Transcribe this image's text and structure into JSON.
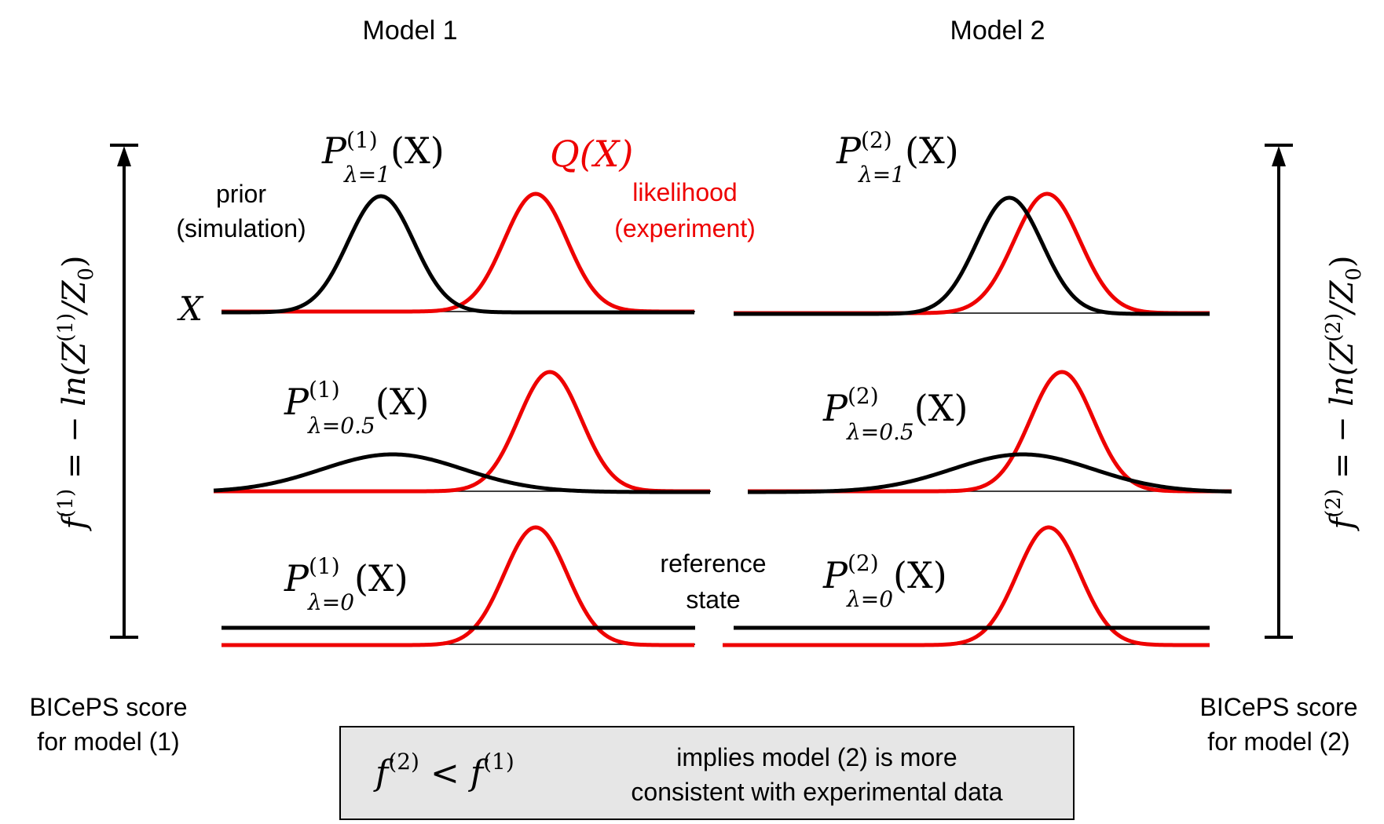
{
  "columns": {
    "model1": "Model 1",
    "model2": "Model 2"
  },
  "axes": {
    "left": {
      "label": "f",
      "label_sup": "(1)",
      "label_rest": " = − ln(Z",
      "label_rest_sup": "(1)",
      "label_tail": "/Z",
      "label_tail_sub": "0",
      "label_close": ")"
    },
    "right": {
      "label": "f",
      "label_sup": "(2)",
      "label_rest": " = − ln(Z",
      "label_rest_sup": "(2)",
      "label_tail": "/Z",
      "label_tail_sub": "0",
      "label_close": ")"
    }
  },
  "annotations": {
    "prior_line1": "prior",
    "prior_line2": "(simulation)",
    "likelihood_line1": "likelihood",
    "likelihood_line2": "(experiment)",
    "x_var": "X",
    "q_label": "Q(X)",
    "reference_line1": "reference",
    "reference_line2": "state"
  },
  "curve_labels": {
    "m1_l1": {
      "base": "P",
      "sup": "(1)",
      "sub": "λ=1",
      "arg": "(X)"
    },
    "m1_l05": {
      "base": "P",
      "sup": "(1)",
      "sub": "λ=0.5",
      "arg": "(X)"
    },
    "m1_l0": {
      "base": "P",
      "sup": "(1)",
      "sub": "λ=0",
      "arg": "(X)"
    },
    "m2_l1": {
      "base": "P",
      "sup": "(2)",
      "sub": "λ=1",
      "arg": "(X)"
    },
    "m2_l05": {
      "base": "P",
      "sup": "(2)",
      "sub": "λ=0.5",
      "arg": "(X)"
    },
    "m2_l0": {
      "base": "P",
      "sup": "(2)",
      "sub": "λ=0",
      "arg": "(X)"
    }
  },
  "scores": {
    "left_line1": "BICePS score",
    "left_line2": "for model (1)",
    "right_line1": "BICePS score",
    "right_line2": "for model (2)"
  },
  "conclusion": {
    "formula_f": "f",
    "formula_sup1": "(2)",
    "formula_lt": " < f",
    "formula_sup2": "(1)",
    "line1": "implies model (2) is more",
    "line2": "consistent with experimental data"
  },
  "colors": {
    "prior": "#000000",
    "likelihood": "#ee0000",
    "box_fill": "#e6e6e6"
  }
}
